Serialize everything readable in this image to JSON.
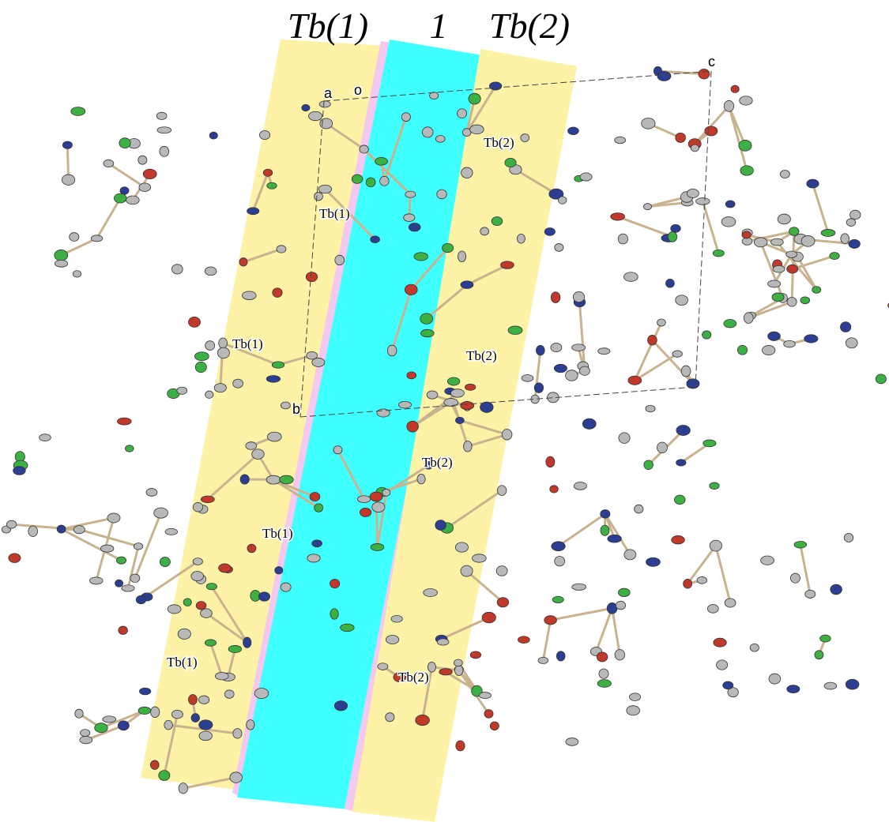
{
  "column_labels": [
    "Tb(1)",
    "1",
    "Tb(2)"
  ],
  "axis_labels": {
    "a": "a",
    "o": "o",
    "b": "b",
    "c": "c"
  },
  "atom_labels": [
    "Tb(1)",
    "Tb(1)",
    "Tb(1)",
    "Tb(1)",
    "Tb(2)",
    "Tb(2)",
    "Tb(2)",
    "Tb(2)"
  ]
}
